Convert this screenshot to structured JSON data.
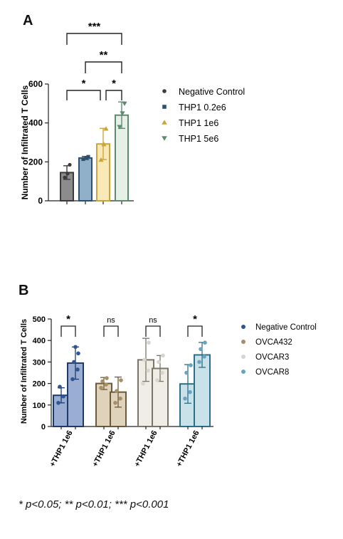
{
  "figure": {
    "footnote": "* p<0.05; ** p<0.01; *** p<0.001"
  },
  "chart_data": [
    {
      "panel": "A",
      "type": "bar",
      "ylabel": "Number of Infiltrated T Cells",
      "ylim": [
        0,
        600
      ],
      "yticks": [
        0,
        200,
        400,
        600
      ],
      "legend_position": "right",
      "categories": [
        "Negative Control",
        "THP1 0.2e6",
        "THP1 1e6",
        "THP1 5e6"
      ],
      "series": [
        {
          "name": "Negative Control",
          "value": 145,
          "err": 35,
          "points": [
            120,
            140,
            185
          ],
          "bar_color": "#8c8c8c",
          "edge_color": "#3b3b3b",
          "marker": "circle"
        },
        {
          "name": "THP1 0.2e6",
          "value": 220,
          "err": 8,
          "points": [
            214,
            220,
            226
          ],
          "bar_color": "#8fb0c8",
          "edge_color": "#2e4f6f",
          "marker": "square"
        },
        {
          "name": "THP1 1e6",
          "value": 292,
          "err": 80,
          "points": [
            210,
            290,
            370
          ],
          "bar_color": "#f8e9b6",
          "edge_color": "#c9a53d",
          "marker": "triangle-up"
        },
        {
          "name": "THP1 5e6",
          "value": 440,
          "err": 68,
          "points": [
            380,
            450,
            500
          ],
          "bar_color": "#e6f0e6",
          "edge_color": "#5e8a6e",
          "marker": "triangle-down"
        }
      ],
      "significance": [
        {
          "from": 0,
          "to": 3,
          "label": "***"
        },
        {
          "from": 1,
          "to": 3,
          "label": "**"
        },
        {
          "from": 0,
          "to": 2,
          "label": "*"
        },
        {
          "from": 2,
          "to": 3,
          "label": "*"
        }
      ]
    },
    {
      "panel": "B",
      "type": "bar",
      "ylabel": "Number of Infiltrated T Cells",
      "ylim": [
        0,
        500
      ],
      "yticks": [
        0,
        100,
        200,
        300,
        400,
        500
      ],
      "legend_position": "right",
      "legend": [
        {
          "name": "Negative Control",
          "color": "#2f5690"
        },
        {
          "name": "OVCA432",
          "color": "#a48f68"
        },
        {
          "name": "OVCAR3",
          "color": "#d7d5cf"
        },
        {
          "name": "OVCAR8",
          "color": "#6aa3bd"
        }
      ],
      "groups": [
        {
          "series": "Negative Control",
          "tick_label": "+THP1 1e6",
          "fill_color": "#9aaed3",
          "edge_color": "#1f3a66",
          "bars": [
            {
              "value": 145,
              "err": 35,
              "points": [
                110,
                140,
                185
              ]
            },
            {
              "value": 295,
              "err": 75,
              "points": [
                220,
                265,
                300,
                340,
                370
              ]
            }
          ],
          "sig": "*"
        },
        {
          "series": "OVCA432",
          "tick_label": "+THP1 1e6",
          "fill_color": "#e0d3bb",
          "edge_color": "#6d5a3a",
          "bars": [
            {
              "value": 200,
              "err": 28,
              "points": [
                180,
                195,
                210,
                225
              ]
            },
            {
              "value": 160,
              "err": 70,
              "points": [
                110,
                130,
                165,
                215
              ]
            }
          ],
          "sig": "ns"
        },
        {
          "series": "OVCAR3",
          "tick_label": "+THP1 1e6",
          "fill_color": "#f0ede6",
          "edge_color": "#7a7569",
          "bars": [
            {
              "value": 310,
              "err": 100,
              "points": [
                200,
                260,
                310,
                390
              ]
            },
            {
              "value": 270,
              "err": 60,
              "points": [
                215,
                250,
                300,
                330
              ]
            }
          ],
          "sig": "ns"
        },
        {
          "series": "OVCAR8",
          "tick_label": "+THP1 1e6",
          "fill_color": "#c9e2ea",
          "edge_color": "#2c6f86",
          "bars": [
            {
              "value": 198,
              "err": 90,
              "points": [
                130,
                160,
                250,
                285
              ]
            },
            {
              "value": 333,
              "err": 58,
              "points": [
                300,
                325,
                360,
                390
              ]
            }
          ],
          "sig": "*"
        }
      ]
    }
  ]
}
